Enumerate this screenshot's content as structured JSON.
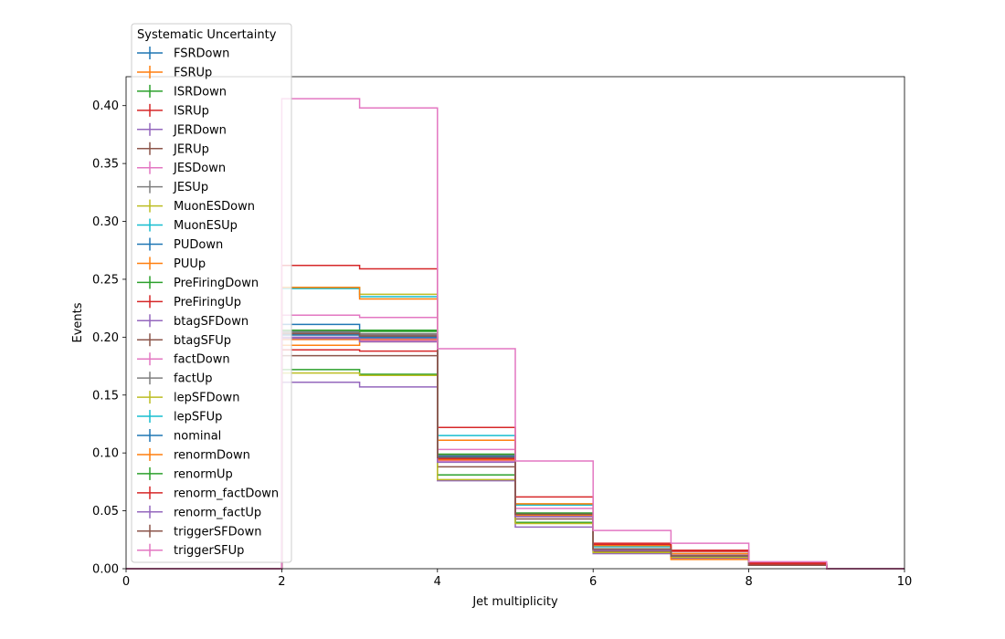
{
  "chart_data": {
    "type": "line",
    "subtype": "step-histogram",
    "title": "",
    "xlabel": "Jet multiplicity",
    "ylabel": "Events",
    "xlim": [
      0,
      10
    ],
    "ylim": [
      0,
      0.425
    ],
    "xticks": [
      "0",
      "2",
      "4",
      "6",
      "8",
      "10"
    ],
    "yticks": [
      "0.00",
      "0.05",
      "0.10",
      "0.15",
      "0.20",
      "0.25",
      "0.30",
      "0.35",
      "0.40"
    ],
    "legend": {
      "title": "Systematic Uncertainty",
      "position": "top-left"
    },
    "bin_edges": [
      0,
      1,
      2,
      3,
      4,
      5,
      6,
      7,
      8,
      9,
      10
    ],
    "series": [
      {
        "name": "FSRDown",
        "color": "#1f77b4",
        "values": [
          0,
          0,
          0.211,
          0.2,
          0.097,
          0.047,
          0.017,
          0.011,
          0.003,
          0
        ]
      },
      {
        "name": "FSRUp",
        "color": "#ff7f0e",
        "values": [
          0,
          0,
          0.193,
          0.198,
          0.096,
          0.047,
          0.016,
          0.011,
          0.003,
          0
        ]
      },
      {
        "name": "ISRDown",
        "color": "#2ca02c",
        "values": [
          0,
          0,
          0.206,
          0.206,
          0.097,
          0.048,
          0.017,
          0.011,
          0.003,
          0
        ]
      },
      {
        "name": "ISRUp",
        "color": "#d62728",
        "values": [
          0,
          0,
          0.203,
          0.202,
          0.097,
          0.047,
          0.017,
          0.011,
          0.003,
          0
        ]
      },
      {
        "name": "JERDown",
        "color": "#9467bd",
        "values": [
          0,
          0,
          0.2,
          0.199,
          0.095,
          0.046,
          0.016,
          0.011,
          0.003,
          0
        ]
      },
      {
        "name": "JERUp",
        "color": "#8c564b",
        "values": [
          0,
          0,
          0.202,
          0.2,
          0.096,
          0.047,
          0.017,
          0.011,
          0.003,
          0
        ]
      },
      {
        "name": "JESDown",
        "color": "#e377c2",
        "values": [
          0,
          0,
          0.219,
          0.217,
          0.103,
          0.052,
          0.019,
          0.012,
          0.004,
          0
        ]
      },
      {
        "name": "JESUp",
        "color": "#7f7f7f",
        "values": [
          0,
          0,
          0.204,
          0.202,
          0.096,
          0.047,
          0.016,
          0.011,
          0.003,
          0
        ]
      },
      {
        "name": "MuonESDown",
        "color": "#bcbd22",
        "values": [
          0,
          0,
          0.243,
          0.237,
          0.111,
          0.056,
          0.02,
          0.013,
          0.004,
          0
        ]
      },
      {
        "name": "MuonESUp",
        "color": "#17becf",
        "values": [
          0,
          0,
          0.242,
          0.235,
          0.115,
          0.055,
          0.019,
          0.013,
          0.004,
          0
        ]
      },
      {
        "name": "PUDown",
        "color": "#1f77b4",
        "values": [
          0,
          0,
          0.205,
          0.2,
          0.097,
          0.047,
          0.017,
          0.011,
          0.003,
          0
        ]
      },
      {
        "name": "PUUp",
        "color": "#ff7f0e",
        "values": [
          0,
          0,
          0.243,
          0.233,
          0.111,
          0.056,
          0.02,
          0.013,
          0.004,
          0
        ]
      },
      {
        "name": "PreFiringDown",
        "color": "#2ca02c",
        "values": [
          0,
          0,
          0.172,
          0.168,
          0.081,
          0.04,
          0.014,
          0.01,
          0.003,
          0
        ]
      },
      {
        "name": "PreFiringUp",
        "color": "#d62728",
        "values": [
          0,
          0,
          0.262,
          0.259,
          0.122,
          0.062,
          0.022,
          0.015,
          0.005,
          0
        ]
      },
      {
        "name": "btagSFDown",
        "color": "#9467bd",
        "values": [
          0,
          0,
          0.161,
          0.157,
          0.076,
          0.036,
          0.013,
          0.009,
          0.003,
          0
        ]
      },
      {
        "name": "btagSFUp",
        "color": "#8c564b",
        "values": [
          0,
          0,
          0.184,
          0.184,
          0.088,
          0.043,
          0.015,
          0.01,
          0.003,
          0
        ]
      },
      {
        "name": "factDown",
        "color": "#e377c2",
        "values": [
          0,
          0,
          0.198,
          0.197,
          0.093,
          0.046,
          0.016,
          0.011,
          0.003,
          0
        ]
      },
      {
        "name": "factUp",
        "color": "#7f7f7f",
        "values": [
          0,
          0,
          0.205,
          0.203,
          0.098,
          0.048,
          0.017,
          0.011,
          0.003,
          0
        ]
      },
      {
        "name": "lepSFDown",
        "color": "#bcbd22",
        "values": [
          0,
          0,
          0.169,
          0.167,
          0.077,
          0.039,
          0.014,
          0.01,
          0.003,
          0
        ]
      },
      {
        "name": "lepSFUp",
        "color": "#17becf",
        "values": [
          0,
          0,
          0.202,
          0.2,
          0.096,
          0.047,
          0.017,
          0.011,
          0.003,
          0
        ]
      },
      {
        "name": "nominal",
        "color": "#1f77b4",
        "values": [
          0,
          0,
          0.202,
          0.2,
          0.097,
          0.047,
          0.017,
          0.011,
          0.003,
          0
        ]
      },
      {
        "name": "renormDown",
        "color": "#ff7f0e",
        "values": [
          0,
          0,
          0.198,
          0.196,
          0.094,
          0.046,
          0.016,
          0.008,
          0.003,
          0
        ]
      },
      {
        "name": "renormUp",
        "color": "#2ca02c",
        "values": [
          0,
          0,
          0.206,
          0.205,
          0.099,
          0.048,
          0.017,
          0.011,
          0.003,
          0
        ]
      },
      {
        "name": "renorm_factDown",
        "color": "#d62728",
        "values": [
          0,
          0,
          0.189,
          0.188,
          0.095,
          0.045,
          0.021,
          0.016,
          0.004,
          0
        ]
      },
      {
        "name": "renorm_factUp",
        "color": "#9467bd",
        "values": [
          0,
          0,
          0.199,
          0.196,
          0.092,
          0.045,
          0.016,
          0.011,
          0.003,
          0
        ]
      },
      {
        "name": "triggerSFDown",
        "color": "#8c564b",
        "values": [
          0,
          0,
          0.203,
          0.201,
          0.096,
          0.047,
          0.017,
          0.011,
          0.003,
          0
        ]
      },
      {
        "name": "triggerSFUp",
        "color": "#e377c2",
        "values": [
          0,
          0,
          0.406,
          0.398,
          0.19,
          0.093,
          0.033,
          0.022,
          0.006,
          0
        ]
      }
    ]
  }
}
